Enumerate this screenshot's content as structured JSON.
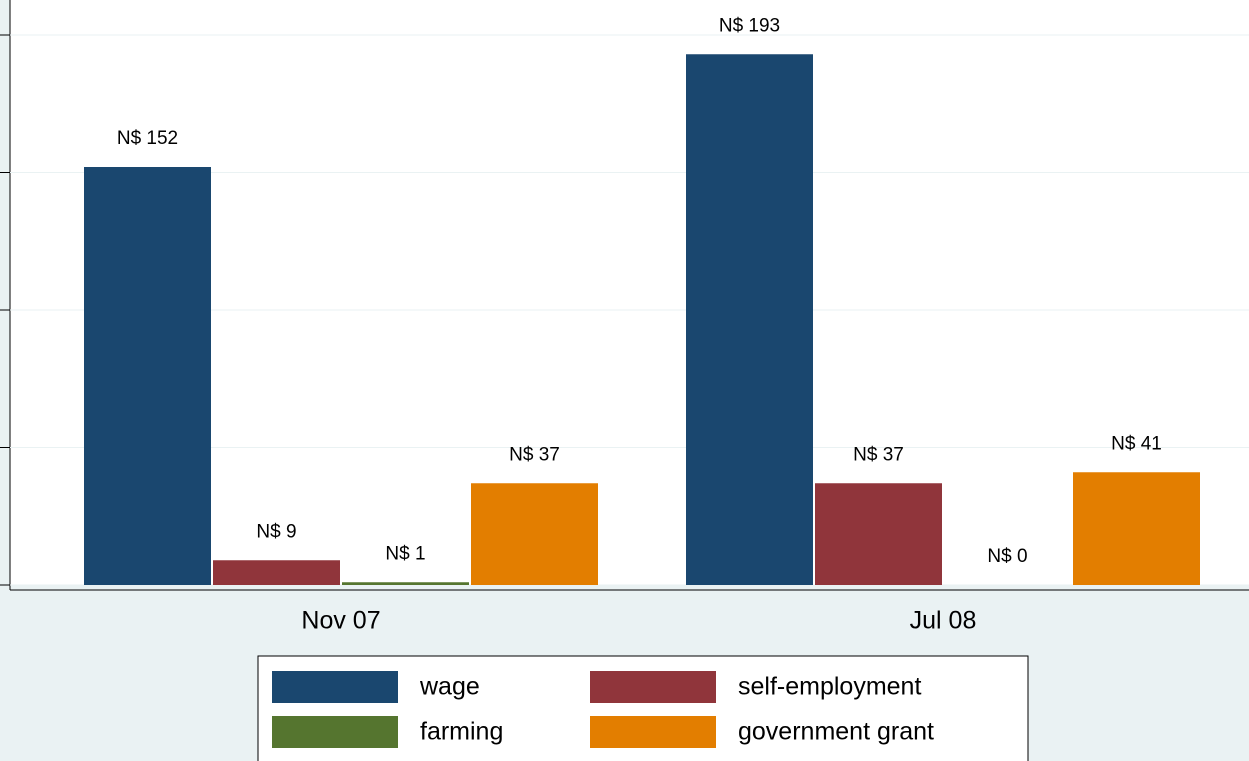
{
  "chart_data": {
    "type": "bar",
    "categories": [
      "Nov 07",
      "Jul 08"
    ],
    "series": [
      {
        "name": "wage",
        "color": "#1a476f",
        "values": [
          152,
          193
        ],
        "value_labels": [
          "N$ 152",
          "N$ 193"
        ]
      },
      {
        "name": "self-employment",
        "color": "#90353b",
        "values": [
          9,
          37
        ],
        "value_labels": [
          "N$ 9",
          "N$ 37"
        ]
      },
      {
        "name": "farming",
        "color": "#55752f",
        "values": [
          1,
          0
        ],
        "value_labels": [
          "N$ 1",
          "N$ 0"
        ]
      },
      {
        "name": "government grant",
        "color": "#e37e00",
        "values": [
          37,
          41
        ],
        "value_labels": [
          "N$ 37",
          "N$ 41"
        ]
      }
    ],
    "ylim": [
      0,
      200
    ],
    "yticks": [
      0,
      50,
      100,
      150,
      200
    ],
    "grid": true
  }
}
